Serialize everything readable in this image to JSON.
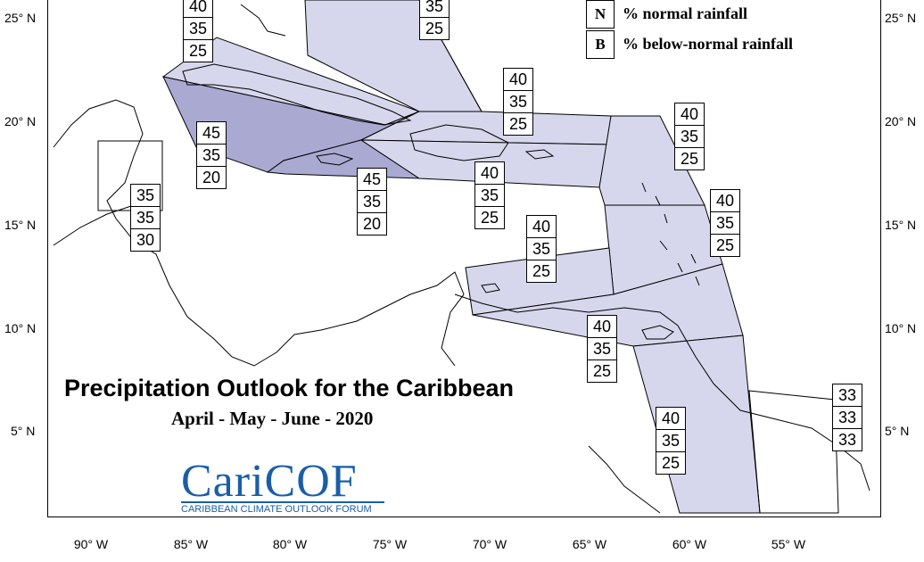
{
  "legend": [
    {
      "key": "N",
      "text": "% normal rainfall"
    },
    {
      "key": "B",
      "text": "% below-normal rainfall"
    }
  ],
  "title": "Precipitation Outlook for the Caribbean",
  "subtitle": "April - May - June - 2020",
  "logo": {
    "main": "CariCOF",
    "sub": "CARIBBEAN CLIMATE OUTLOOK FORUM"
  },
  "lat_labels": [
    "25° N",
    "20° N",
    "15° N",
    "10° N",
    "5° N"
  ],
  "lon_labels": [
    "90° W",
    "85° W",
    "80° W",
    "75° W",
    "70° W",
    "65° W",
    "60° W",
    "55° W"
  ],
  "colors": {
    "light_region": "#d6d6ec",
    "dark_region": "#a9a9d2"
  },
  "forecasts": [
    {
      "id": "bahamas-west",
      "values": [
        "40",
        "35",
        "25"
      ]
    },
    {
      "id": "bahamas-east",
      "values": [
        "35",
        "25"
      ]
    },
    {
      "id": "turks-hispaniola",
      "values": [
        "40",
        "35",
        "25"
      ]
    },
    {
      "id": "leeward-north",
      "values": [
        "40",
        "35",
        "25"
      ]
    },
    {
      "id": "cuba-cayman",
      "values": [
        "45",
        "35",
        "20"
      ]
    },
    {
      "id": "jamaica",
      "values": [
        "45",
        "35",
        "20"
      ]
    },
    {
      "id": "puerto-rico",
      "values": [
        "40",
        "35",
        "25"
      ]
    },
    {
      "id": "leeward-south",
      "values": [
        "40",
        "35",
        "25"
      ]
    },
    {
      "id": "belize",
      "values": [
        "35",
        "35",
        "30"
      ]
    },
    {
      "id": "abc-islands",
      "values": [
        "40",
        "35",
        "25"
      ]
    },
    {
      "id": "trinidad",
      "values": [
        "40",
        "35",
        "25"
      ]
    },
    {
      "id": "guyana",
      "values": [
        "40",
        "35",
        "25"
      ]
    },
    {
      "id": "suriname",
      "values": [
        "33",
        "33",
        "33"
      ]
    }
  ]
}
